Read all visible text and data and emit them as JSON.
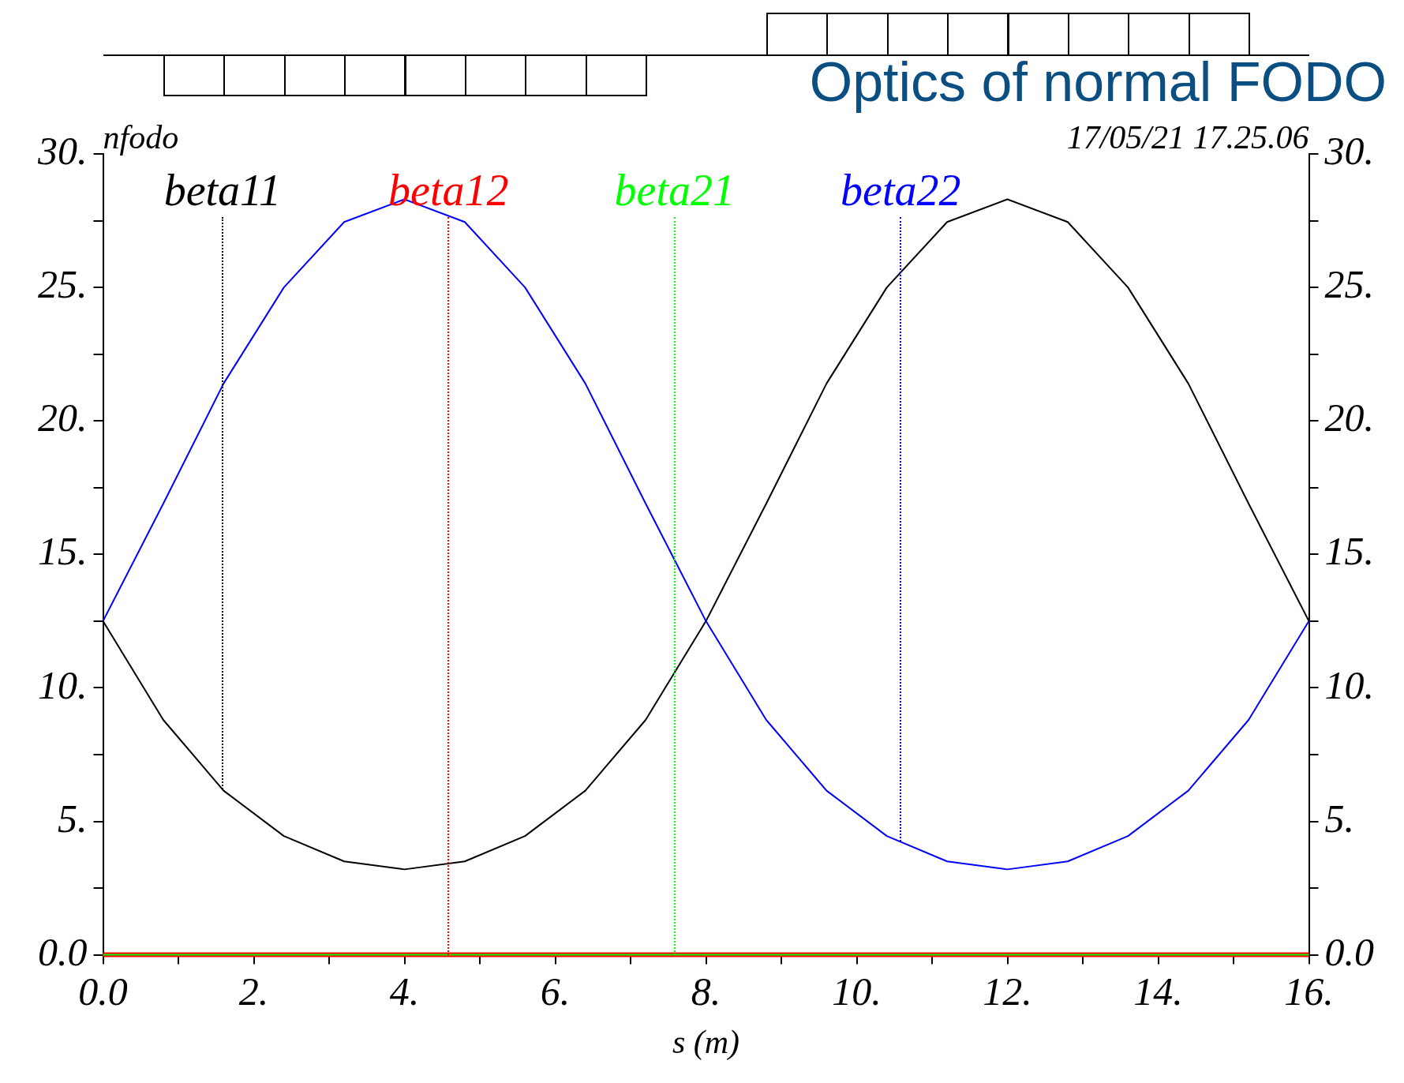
{
  "chart_data": {
    "type": "line",
    "title": "Optics of normal FODO",
    "subtitle": "nfodo",
    "annotations": [
      "17/05/21 17.25.06"
    ],
    "xlabel": "s (m)",
    "x": [
      0,
      0.8,
      1.6,
      2.4,
      3.2,
      4.0,
      4.8,
      5.6,
      6.4,
      7.2,
      8.0,
      8.8,
      9.6,
      10.4,
      11.2,
      12.0,
      12.8,
      13.6,
      14.4,
      15.2,
      16.0
    ],
    "series": [
      {
        "name": "beta11",
        "color": "#000000",
        "values": [
          12.5,
          8.8,
          6.15,
          4.45,
          3.5,
          3.2,
          3.5,
          4.45,
          6.15,
          8.8,
          12.5,
          16.9,
          21.4,
          25.0,
          27.45,
          28.3,
          27.45,
          25.0,
          21.4,
          16.9,
          12.5
        ]
      },
      {
        "name": "beta12",
        "color": "#ff0000",
        "values": [
          0,
          0,
          0,
          0,
          0,
          0,
          0,
          0,
          0,
          0,
          0,
          0,
          0,
          0,
          0,
          0,
          0,
          0,
          0,
          0,
          0
        ]
      },
      {
        "name": "beta21",
        "color": "#00ff00",
        "values": [
          0,
          0,
          0,
          0,
          0,
          0,
          0,
          0,
          0,
          0,
          0,
          0,
          0,
          0,
          0,
          0,
          0,
          0,
          0,
          0,
          0
        ]
      },
      {
        "name": "beta22",
        "color": "#0000ff",
        "values": [
          12.5,
          16.9,
          21.4,
          25.0,
          27.45,
          28.3,
          27.45,
          25.0,
          21.4,
          16.9,
          12.5,
          8.8,
          6.15,
          4.45,
          3.5,
          3.2,
          3.5,
          4.45,
          6.15,
          8.8,
          12.5
        ]
      }
    ],
    "xlim": [
      0,
      16
    ],
    "xticks": [
      {
        "value": 0,
        "label": "0.0"
      },
      {
        "value": 1,
        "label": null
      },
      {
        "value": 2,
        "label": "2."
      },
      {
        "value": 3,
        "label": null
      },
      {
        "value": 4,
        "label": "4."
      },
      {
        "value": 5,
        "label": null
      },
      {
        "value": 6,
        "label": "6."
      },
      {
        "value": 7,
        "label": null
      },
      {
        "value": 8,
        "label": "8."
      },
      {
        "value": 9,
        "label": null
      },
      {
        "value": 10,
        "label": "10."
      },
      {
        "value": 11,
        "label": null
      },
      {
        "value": 12,
        "label": "12."
      },
      {
        "value": 13,
        "label": null
      },
      {
        "value": 14,
        "label": "14."
      },
      {
        "value": 15,
        "label": null
      },
      {
        "value": 16,
        "label": "16."
      }
    ],
    "ylim": [
      0,
      30
    ],
    "yticks": [
      {
        "value": 0,
        "label": "0.0"
      },
      {
        "value": 2.5,
        "label": null
      },
      {
        "value": 5,
        "label": "5."
      },
      {
        "value": 7.5,
        "label": null
      },
      {
        "value": 10,
        "label": "10."
      },
      {
        "value": 12.5,
        "label": null
      },
      {
        "value": 15,
        "label": "15."
      },
      {
        "value": 17.5,
        "label": null
      },
      {
        "value": 20,
        "label": "20."
      },
      {
        "value": 22.5,
        "label": null
      },
      {
        "value": 25,
        "label": "25."
      },
      {
        "value": 27.5,
        "label": null
      },
      {
        "value": 30,
        "label": "30."
      }
    ],
    "y2lim": [
      0,
      30
    ],
    "y2ticks": [
      {
        "value": 0,
        "label": "0.0"
      },
      {
        "value": 2.5,
        "label": null
      },
      {
        "value": 5,
        "label": "5."
      },
      {
        "value": 7.5,
        "label": null
      },
      {
        "value": 10,
        "label": "10."
      },
      {
        "value": 12.5,
        "label": null
      },
      {
        "value": 15,
        "label": "15."
      },
      {
        "value": 17.5,
        "label": null
      },
      {
        "value": 20,
        "label": "20."
      },
      {
        "value": 22.5,
        "label": null
      },
      {
        "value": 25,
        "label": "25."
      },
      {
        "value": 27.5,
        "label": null
      },
      {
        "value": 30,
        "label": "30."
      }
    ],
    "grid": false,
    "legend": "top left",
    "marker": "none",
    "line_style": "solid"
  }
}
